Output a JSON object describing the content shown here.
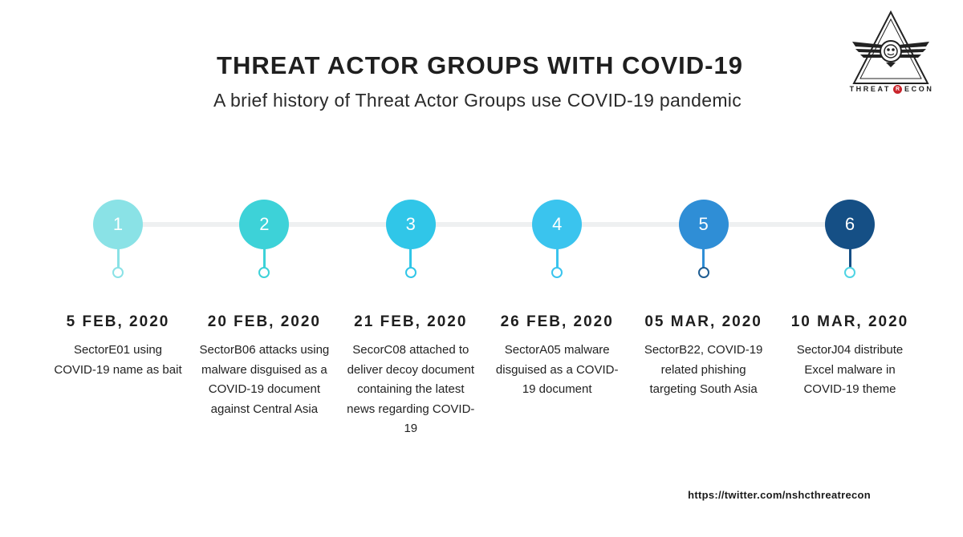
{
  "header": {
    "title": "THREAT ACTOR GROUPS WITH COVID-19",
    "subtitle": "A brief history of Threat Actor Groups use COVID-19 pandemic"
  },
  "logo": {
    "text_before": "THREAT",
    "badge": "R",
    "text_after": "ECON"
  },
  "timeline": [
    {
      "number": "1",
      "date": "5 FEB, 2020",
      "description": "SectorE01 using COVID-19 name as bait",
      "color": "#8ae2e6"
    },
    {
      "number": "2",
      "date": "20 FEB, 2020",
      "description": "SectorB06 attacks using malware disguised as a COVID-19 document against Central Asia",
      "color": "#3dd2d8"
    },
    {
      "number": "3",
      "date": "21 FEB, 2020",
      "description": "SecorC08 attached to deliver decoy document containing the latest news regarding COVID-19",
      "color": "#30c6e8"
    },
    {
      "number": "4",
      "date": "26 FEB, 2020",
      "description": "SectorA05 malware disguised as a COVID-19 document",
      "color": "#3ac4ee"
    },
    {
      "number": "5",
      "date": "05 MAR, 2020",
      "description": "SectorB22, COVID-19 related phishing targeting South Asia",
      "color": "#2f8ed6"
    },
    {
      "number": "6",
      "date": "10 MAR, 2020",
      "description": "SectorJ04 distribute Excel malware in COVID-19 theme",
      "color": "#154f85"
    }
  ],
  "dot_colors": [
    "#8ae2e6",
    "#3dd2d8",
    "#30c6e8",
    "#3ac4ee",
    "#1e5d92",
    "#4fd4e4"
  ],
  "footer": {
    "url": "https://twitter.com/nshcthreatrecon"
  }
}
